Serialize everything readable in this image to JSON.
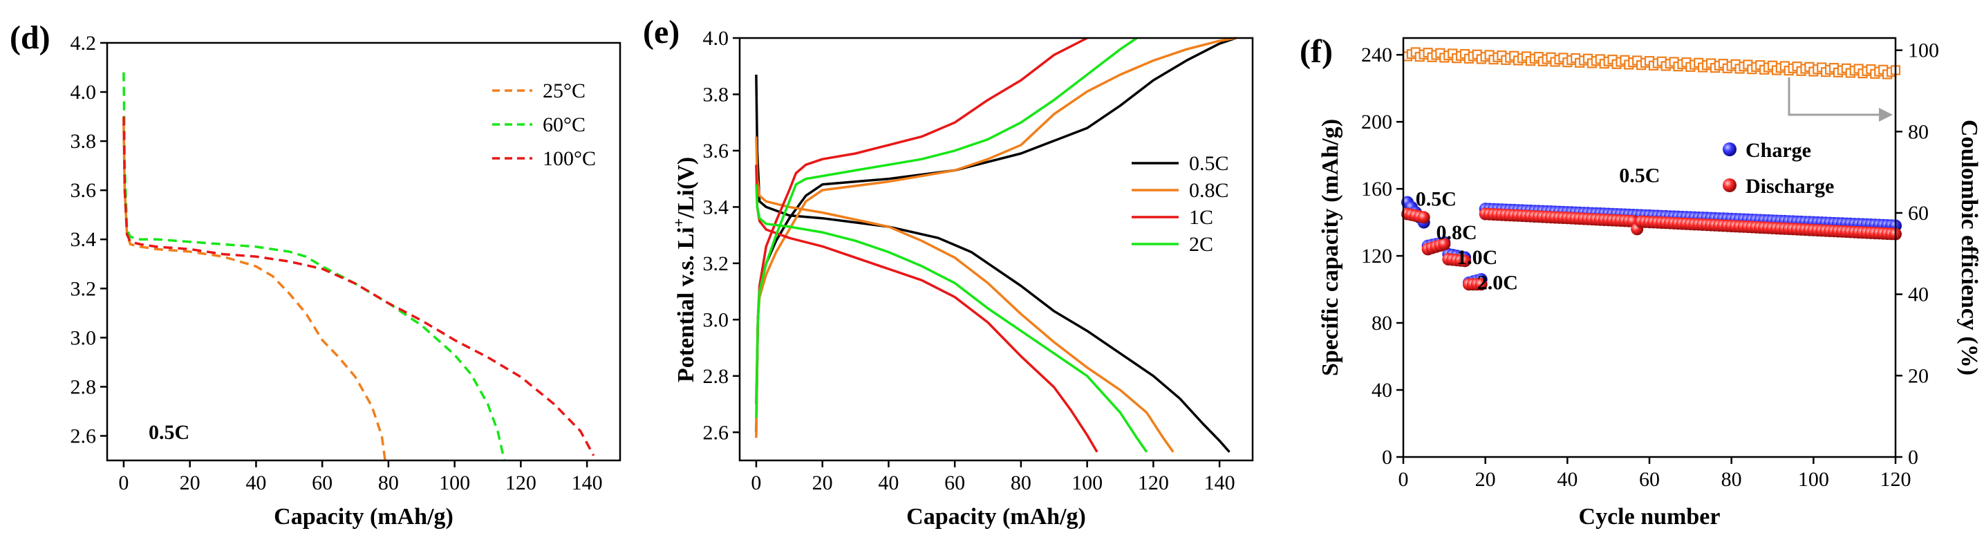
{
  "chart_data": [
    {
      "type": "line",
      "panel_label": "(d)",
      "xlabel": "Capacity (mAh/g)",
      "ylabel": "",
      "xlim": [
        -5,
        150
      ],
      "ylim": [
        2.5,
        4.2
      ],
      "xticks": [
        0,
        20,
        40,
        60,
        80,
        100,
        120,
        140
      ],
      "yticks": [
        2.6,
        2.8,
        3.0,
        3.2,
        3.4,
        3.6,
        3.8,
        4.0,
        4.2
      ],
      "annotation": "0.5C",
      "legend_position": "top-right",
      "series": [
        {
          "name": "25°C",
          "color": "#f07f1c",
          "dash": true,
          "x": [
            0,
            0.3,
            1,
            2,
            5,
            10,
            20,
            30,
            40,
            45,
            50,
            55,
            60,
            65,
            70,
            75,
            78,
            79
          ],
          "y": [
            3.87,
            3.6,
            3.42,
            3.38,
            3.37,
            3.36,
            3.35,
            3.33,
            3.29,
            3.25,
            3.18,
            3.1,
            2.99,
            2.92,
            2.84,
            2.72,
            2.6,
            2.5
          ]
        },
        {
          "name": "60°C",
          "color": "#17e617",
          "dash": true,
          "x": [
            0,
            0.3,
            1,
            2,
            5,
            10,
            20,
            30,
            40,
            50,
            55,
            60,
            70,
            80,
            90,
            100,
            105,
            110,
            113,
            115
          ],
          "y": [
            4.08,
            3.7,
            3.44,
            3.41,
            3.4,
            3.4,
            3.39,
            3.38,
            3.37,
            3.35,
            3.33,
            3.29,
            3.22,
            3.14,
            3.05,
            2.93,
            2.85,
            2.73,
            2.62,
            2.5
          ]
        },
        {
          "name": "100°C",
          "color": "#e81717",
          "dash": true,
          "x": [
            0,
            0.3,
            1,
            2,
            5,
            10,
            20,
            30,
            40,
            50,
            60,
            70,
            80,
            90,
            100,
            110,
            120,
            130,
            138,
            142
          ],
          "y": [
            3.9,
            3.6,
            3.42,
            3.39,
            3.38,
            3.37,
            3.36,
            3.34,
            3.33,
            3.31,
            3.28,
            3.22,
            3.14,
            3.07,
            2.99,
            2.92,
            2.84,
            2.73,
            2.62,
            2.52
          ]
        }
      ]
    },
    {
      "type": "line",
      "panel_label": "(e)",
      "xlabel": "Capacity (mAh/g)",
      "ylabel_prefix": "Potential v.s. Li",
      "ylabel_sup": "+",
      "ylabel_suffix": "/Li(V)",
      "xlim": [
        -5,
        150
      ],
      "ylim": [
        2.5,
        4.0
      ],
      "xticks": [
        0,
        20,
        40,
        60,
        80,
        100,
        120,
        140
      ],
      "yticks": [
        2.6,
        2.8,
        3.0,
        3.2,
        3.4,
        3.6,
        3.8,
        4.0
      ],
      "legend_position": "center-right",
      "series": [
        {
          "name": "0.5C",
          "color": "#000000",
          "charge_x": [
            0,
            0.5,
            1,
            3,
            6,
            10,
            15,
            20,
            40,
            60,
            80,
            100,
            110,
            120,
            130,
            140,
            145
          ],
          "charge_y": [
            2.6,
            3.0,
            3.1,
            3.2,
            3.28,
            3.36,
            3.44,
            3.48,
            3.5,
            3.53,
            3.59,
            3.68,
            3.76,
            3.85,
            3.92,
            3.98,
            4.0
          ],
          "discharge_x": [
            0,
            0.3,
            1,
            3,
            10,
            20,
            40,
            55,
            65,
            80,
            90,
            100,
            110,
            120,
            128,
            135,
            140,
            143
          ],
          "discharge_y": [
            3.87,
            3.6,
            3.42,
            3.4,
            3.37,
            3.36,
            3.33,
            3.29,
            3.24,
            3.12,
            3.03,
            2.96,
            2.88,
            2.8,
            2.72,
            2.63,
            2.57,
            2.53
          ]
        },
        {
          "name": "0.8C",
          "color": "#f07f1c",
          "charge_x": [
            0,
            0.5,
            1,
            3,
            6,
            10,
            15,
            20,
            40,
            60,
            70,
            80,
            90,
            100,
            110,
            120,
            130,
            140,
            145
          ],
          "charge_y": [
            2.58,
            3.0,
            3.08,
            3.16,
            3.24,
            3.32,
            3.42,
            3.46,
            3.49,
            3.53,
            3.57,
            3.62,
            3.73,
            3.81,
            3.87,
            3.92,
            3.96,
            3.99,
            4.0
          ],
          "discharge_x": [
            0,
            0.3,
            1,
            3,
            10,
            20,
            40,
            50,
            60,
            70,
            80,
            90,
            100,
            110,
            118,
            123,
            126
          ],
          "discharge_y": [
            3.65,
            3.5,
            3.44,
            3.42,
            3.4,
            3.38,
            3.33,
            3.28,
            3.22,
            3.13,
            3.02,
            2.92,
            2.83,
            2.75,
            2.67,
            2.58,
            2.53
          ]
        },
        {
          "name": "1C",
          "color": "#e81717",
          "charge_x": [
            0,
            0.5,
            1,
            3,
            6,
            10,
            12,
            15,
            20,
            30,
            40,
            50,
            60,
            70,
            80,
            90,
            100
          ],
          "charge_y": [
            2.7,
            3.0,
            3.12,
            3.26,
            3.35,
            3.46,
            3.52,
            3.55,
            3.57,
            3.59,
            3.62,
            3.65,
            3.7,
            3.78,
            3.85,
            3.94,
            4.0
          ],
          "discharge_x": [
            0,
            0.3,
            1,
            3,
            10,
            20,
            30,
            40,
            50,
            60,
            70,
            80,
            90,
            95,
            100,
            103
          ],
          "discharge_y": [
            3.55,
            3.4,
            3.35,
            3.32,
            3.29,
            3.26,
            3.22,
            3.18,
            3.14,
            3.08,
            2.99,
            2.87,
            2.76,
            2.68,
            2.59,
            2.53
          ]
        },
        {
          "name": "2C",
          "color": "#17e617",
          "charge_x": [
            0,
            0.5,
            1,
            3,
            6,
            10,
            12,
            15,
            20,
            30,
            40,
            50,
            60,
            70,
            80,
            90,
            100,
            110,
            115
          ],
          "charge_y": [
            2.65,
            3.0,
            3.1,
            3.2,
            3.3,
            3.42,
            3.48,
            3.5,
            3.51,
            3.53,
            3.55,
            3.57,
            3.6,
            3.64,
            3.7,
            3.78,
            3.87,
            3.96,
            4.0
          ],
          "discharge_x": [
            0,
            0.3,
            1,
            3,
            10,
            20,
            30,
            40,
            50,
            60,
            70,
            80,
            90,
            100,
            110,
            115,
            118
          ],
          "discharge_y": [
            3.48,
            3.4,
            3.36,
            3.34,
            3.33,
            3.31,
            3.28,
            3.24,
            3.19,
            3.13,
            3.04,
            2.96,
            2.88,
            2.8,
            2.67,
            2.58,
            2.53
          ]
        }
      ]
    },
    {
      "type": "scatter",
      "panel_label": "(f)",
      "xlabel": "Cycle number",
      "ylabel": "Specific capacity (mAh/g)",
      "ylabel_right": "Coulombic efficiency (%)",
      "xlim": [
        0,
        120
      ],
      "ylim": [
        0,
        250
      ],
      "ylim_right": [
        0,
        103
      ],
      "xticks": [
        0,
        20,
        40,
        60,
        80,
        100,
        120
      ],
      "yticks": [
        0,
        40,
        80,
        120,
        160,
        200,
        240
      ],
      "yticks_right": [
        0,
        20,
        40,
        60,
        80,
        100
      ],
      "legend_position": "upper-center",
      "rate_labels": [
        {
          "text": "0.5C",
          "cycle": 3,
          "capacity": 150
        },
        {
          "text": "0.8C",
          "cycle": 8,
          "capacity": 130
        },
        {
          "text": "1.0C",
          "cycle": 13,
          "capacity": 115
        },
        {
          "text": "2.0C",
          "cycle": 18,
          "capacity": 100
        },
        {
          "text": "0.5C",
          "cycle": 56,
          "capacity": 164
        }
      ],
      "series": [
        {
          "name": "Charge",
          "color": "#1a1ae6",
          "marker": "sphere",
          "segments": [
            {
              "from": 1,
              "to": 5,
              "start": 152,
              "end": 140
            },
            {
              "from": 6,
              "to": 10,
              "start": 126,
              "end": 128
            },
            {
              "from": 11,
              "to": 15,
              "start": 121,
              "end": 119
            },
            {
              "from": 16,
              "to": 19,
              "start": 104,
              "end": 106
            },
            {
              "from": 20,
              "to": 120,
              "start": 148,
              "end": 138
            }
          ]
        },
        {
          "name": "Discharge",
          "color": "#e81717",
          "marker": "sphere",
          "segments": [
            {
              "from": 1,
              "to": 5,
              "start": 145,
              "end": 143
            },
            {
              "from": 6,
              "to": 10,
              "start": 124,
              "end": 127
            },
            {
              "from": 11,
              "to": 15,
              "start": 118,
              "end": 117
            },
            {
              "from": 16,
              "to": 19,
              "start": 103,
              "end": 103
            },
            {
              "from": 20,
              "to": 120,
              "start": 145,
              "end": 133
            }
          ],
          "outlier": {
            "cycle": 57,
            "value": 136
          }
        },
        {
          "name": "Coulombic efficiency",
          "color": "#f07f1c",
          "marker": "square-open",
          "axis": "right",
          "start": 99,
          "end": 94.5
        }
      ]
    }
  ]
}
